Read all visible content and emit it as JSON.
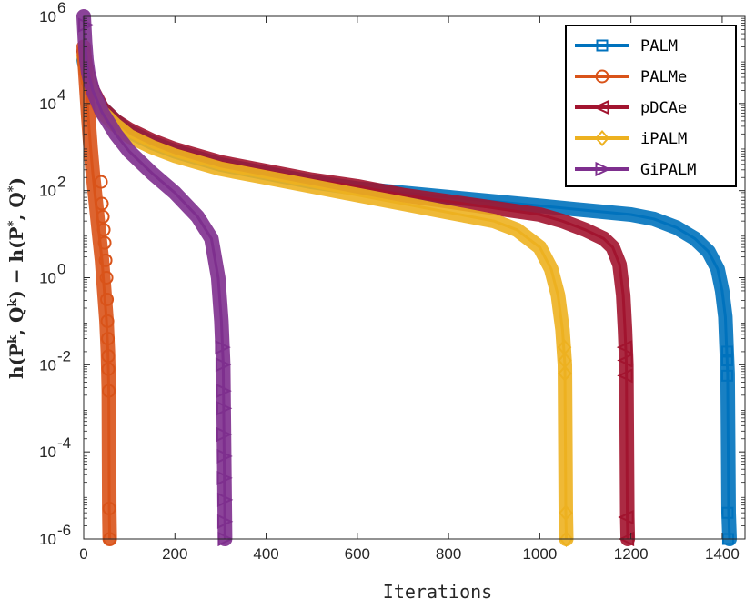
{
  "chart_data": {
    "type": "line",
    "title": "",
    "xlabel": "Iterations",
    "ylabel": {
      "parts": [
        {
          "t": "h(P",
          "s": 0
        },
        {
          "t": "k",
          "s": 1
        },
        {
          "t": ", Q",
          "s": 0
        },
        {
          "t": "k",
          "s": 1
        },
        {
          "t": ") − h(P",
          "s": 0
        },
        {
          "t": "*",
          "s": 1
        },
        {
          "t": ", Q",
          "s": 0
        },
        {
          "t": "*",
          "s": 1
        },
        {
          "t": ")",
          "s": 0
        }
      ]
    },
    "xlim": [
      0,
      1450
    ],
    "ylim_log10": [
      -6,
      6
    ],
    "yscale": "log",
    "xticks": [
      0,
      200,
      400,
      600,
      800,
      1000,
      1200,
      1400
    ],
    "yticks_exponents": [
      -6,
      -4,
      -2,
      0,
      2,
      4,
      6
    ],
    "ytick_base": "10",
    "legend_position": "top-right",
    "series": [
      {
        "name": "PALM",
        "color": "#0072BD",
        "marker": "square",
        "points_log10": [
          [
            0,
            5.0
          ],
          [
            4,
            4.8
          ],
          [
            10,
            4.5
          ],
          [
            20,
            4.2
          ],
          [
            40,
            3.9
          ],
          [
            70,
            3.6
          ],
          [
            100,
            3.35
          ],
          [
            150,
            3.1
          ],
          [
            200,
            2.9
          ],
          [
            300,
            2.6
          ],
          [
            400,
            2.4
          ],
          [
            500,
            2.2
          ],
          [
            600,
            2.05
          ],
          [
            700,
            1.95
          ],
          [
            800,
            1.85
          ],
          [
            900,
            1.75
          ],
          [
            1000,
            1.65
          ],
          [
            1100,
            1.55
          ],
          [
            1200,
            1.45
          ],
          [
            1250,
            1.35
          ],
          [
            1300,
            1.15
          ],
          [
            1340,
            0.9
          ],
          [
            1370,
            0.6
          ],
          [
            1390,
            0.2
          ],
          [
            1400,
            -0.3
          ],
          [
            1407,
            -0.9
          ],
          [
            1410,
            -1.7
          ],
          [
            1412,
            -2.2
          ],
          [
            1414,
            -5.4
          ],
          [
            1416,
            -6
          ]
        ],
        "markers_log10": [
          [
            1411,
            -1.7
          ],
          [
            1411,
            -1.9
          ],
          [
            1411,
            -2.25
          ],
          [
            1412,
            -5.4
          ],
          [
            1413,
            -6
          ]
        ]
      },
      {
        "name": "PALMe",
        "color": "#D95319",
        "marker": "circle",
        "points_log10": [
          [
            0,
            5.3
          ],
          [
            5,
            4.5
          ],
          [
            10,
            3.7
          ],
          [
            15,
            3.0
          ],
          [
            20,
            2.4
          ],
          [
            25,
            1.9
          ],
          [
            30,
            1.4
          ],
          [
            35,
            0.9
          ],
          [
            40,
            0.4
          ],
          [
            45,
            -0.3
          ],
          [
            50,
            -1.0
          ],
          [
            53,
            -1.7
          ],
          [
            55,
            -2.6
          ],
          [
            56,
            -5.3
          ],
          [
            57,
            -6
          ]
        ],
        "markers_log10": [
          [
            38,
            2.2
          ],
          [
            40,
            1.7
          ],
          [
            42,
            1.4
          ],
          [
            44,
            1.1
          ],
          [
            46,
            0.8
          ],
          [
            48,
            0.4
          ],
          [
            50,
            0.0
          ],
          [
            51,
            -0.5
          ],
          [
            52,
            -1.0
          ],
          [
            53,
            -1.4
          ],
          [
            54,
            -1.8
          ],
          [
            54,
            -2.1
          ],
          [
            55,
            -2.6
          ],
          [
            56,
            -5.3
          ],
          [
            57,
            -6
          ]
        ]
      },
      {
        "name": "pDCAe",
        "color": "#A2142F",
        "marker": "triangle-left",
        "points_log10": [
          [
            0,
            5.2
          ],
          [
            4,
            4.9
          ],
          [
            10,
            4.6
          ],
          [
            20,
            4.3
          ],
          [
            40,
            3.9
          ],
          [
            70,
            3.6
          ],
          [
            100,
            3.4
          ],
          [
            150,
            3.15
          ],
          [
            200,
            2.95
          ],
          [
            300,
            2.65
          ],
          [
            400,
            2.45
          ],
          [
            500,
            2.25
          ],
          [
            600,
            2.1
          ],
          [
            700,
            1.9
          ],
          [
            800,
            1.75
          ],
          [
            900,
            1.6
          ],
          [
            1000,
            1.45
          ],
          [
            1050,
            1.3
          ],
          [
            1100,
            1.1
          ],
          [
            1140,
            0.9
          ],
          [
            1160,
            0.7
          ],
          [
            1175,
            0.3
          ],
          [
            1183,
            -0.4
          ],
          [
            1187,
            -1.2
          ],
          [
            1190,
            -2.0
          ],
          [
            1192,
            -5.5
          ],
          [
            1193,
            -6
          ]
        ],
        "markers_log10": [
          [
            1188,
            -1.6
          ],
          [
            1189,
            -1.9
          ],
          [
            1189,
            -2.25
          ],
          [
            1191,
            -5.5
          ],
          [
            1192,
            -6
          ]
        ]
      },
      {
        "name": "iPALM",
        "color": "#EDB120",
        "marker": "diamond",
        "points_log10": [
          [
            0,
            5.1
          ],
          [
            4,
            4.8
          ],
          [
            10,
            4.5
          ],
          [
            20,
            4.2
          ],
          [
            40,
            3.8
          ],
          [
            70,
            3.5
          ],
          [
            100,
            3.25
          ],
          [
            150,
            3.0
          ],
          [
            200,
            2.8
          ],
          [
            300,
            2.5
          ],
          [
            400,
            2.3
          ],
          [
            500,
            2.1
          ],
          [
            600,
            1.9
          ],
          [
            700,
            1.7
          ],
          [
            800,
            1.5
          ],
          [
            900,
            1.3
          ],
          [
            950,
            1.1
          ],
          [
            1000,
            0.7
          ],
          [
            1025,
            0.2
          ],
          [
            1040,
            -0.4
          ],
          [
            1050,
            -1.2
          ],
          [
            1055,
            -2.0
          ],
          [
            1057,
            -5.4
          ],
          [
            1058,
            -6
          ]
        ],
        "markers_log10": [
          [
            1054,
            -1.6
          ],
          [
            1055,
            -1.9
          ],
          [
            1055,
            -2.2
          ],
          [
            1057,
            -5.4
          ],
          [
            1058,
            -6
          ]
        ]
      },
      {
        "name": "GiPALM",
        "color": "#7E2F8E",
        "marker": "triangle-right",
        "points_log10": [
          [
            0,
            6
          ],
          [
            3,
            5.4
          ],
          [
            6,
            5.0
          ],
          [
            10,
            4.7
          ],
          [
            20,
            4.3
          ],
          [
            40,
            3.8
          ],
          [
            70,
            3.3
          ],
          [
            100,
            2.9
          ],
          [
            150,
            2.4
          ],
          [
            200,
            1.95
          ],
          [
            250,
            1.4
          ],
          [
            280,
            0.9
          ],
          [
            295,
            0.0
          ],
          [
            302,
            -1.0
          ],
          [
            306,
            -2.0
          ],
          [
            310,
            -6
          ]
        ],
        "markers_log10": [
          [
            3,
            5.8
          ],
          [
            303,
            -1.6
          ],
          [
            304,
            -2.0
          ],
          [
            305,
            -2.6
          ],
          [
            306,
            -3.0
          ],
          [
            306,
            -3.6
          ],
          [
            307,
            -4.1
          ],
          [
            307,
            -4.6
          ],
          [
            308,
            -5.1
          ],
          [
            308,
            -5.6
          ],
          [
            309,
            -6
          ]
        ]
      }
    ]
  }
}
